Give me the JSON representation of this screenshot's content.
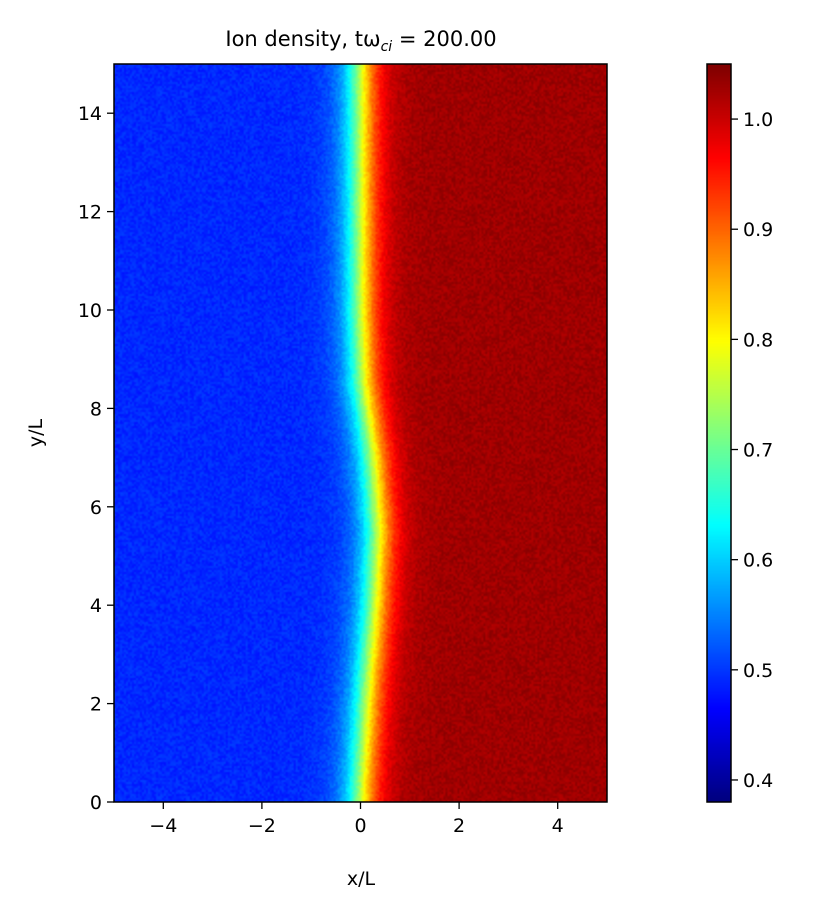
{
  "chart_data": {
    "type": "heatmap",
    "title": "Ion density, tω",
    "title_sub": "ci",
    "title_value": " = 200.00",
    "xlabel": "x/L",
    "ylabel": "y/L",
    "xlim": [
      -5,
      5
    ],
    "ylim": [
      0,
      15
    ],
    "x_ticks": [
      -4,
      -2,
      0,
      2,
      4
    ],
    "x_tick_labels": [
      "−4",
      "−2",
      "0",
      "2",
      "4"
    ],
    "y_ticks": [
      0,
      2,
      4,
      6,
      8,
      10,
      12,
      14
    ],
    "y_tick_labels": [
      "0",
      "2",
      "4",
      "6",
      "8",
      "10",
      "12",
      "14"
    ],
    "colormap": "jet",
    "colorbar": {
      "vmin": 0.38,
      "vmax": 1.05,
      "ticks": [
        0.4,
        0.5,
        0.6,
        0.7,
        0.8,
        0.9,
        1.0
      ],
      "tick_labels": [
        "0.4",
        "0.5",
        "0.6",
        "0.7",
        "0.8",
        "0.9",
        "1.0"
      ]
    },
    "density_profile": {
      "description_low": 0.49,
      "high": 1.03,
      "transition_center_x_by_y": [
        [
          0,
          0.0
        ],
        [
          2,
          0.12
        ],
        [
          4,
          0.28
        ],
        [
          5.5,
          0.35
        ],
        [
          7,
          0.25
        ],
        [
          8.5,
          0.05
        ],
        [
          10,
          0.0
        ],
        [
          12,
          0.0
        ],
        [
          15,
          0.0
        ]
      ]
    }
  }
}
